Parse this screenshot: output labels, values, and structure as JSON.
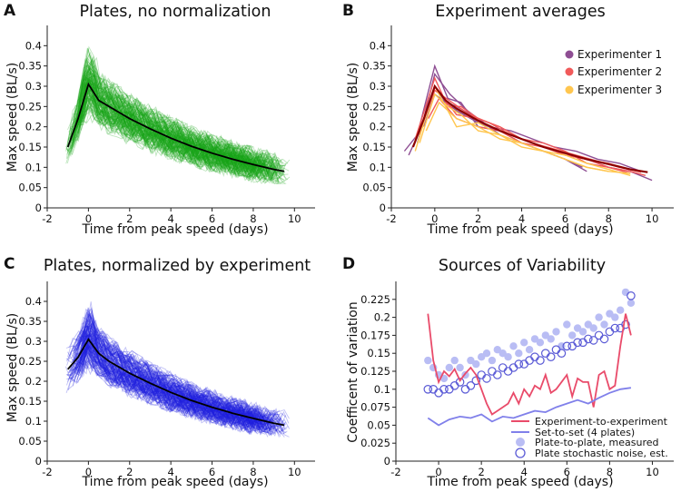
{
  "panels": {
    "A": {
      "letter": "A",
      "chart_data": {
        "type": "line",
        "title": "Plates, no normalization",
        "xlabel": "Time from peak speed (days)",
        "ylabel": "Max speed (BL/s)",
        "xlim": [
          -2,
          11
        ],
        "ylim": [
          0,
          0.45
        ],
        "xticks": [
          "-2",
          "0",
          "2",
          "4",
          "6",
          "8",
          "10"
        ],
        "yticks": [
          "0",
          "0.05",
          "0.1",
          "0.15",
          "0.2",
          "0.25",
          "0.3",
          "0.35",
          "0.4"
        ],
        "trace_color": "#1aa51a",
        "mean_color": "#000000",
        "trace_count": 150,
        "spread": 0.028,
        "mean": {
          "x": [
            -1,
            -0.5,
            0,
            0.5,
            1,
            2,
            3,
            4,
            5,
            6,
            7,
            8,
            9,
            9.5
          ],
          "y": [
            0.15,
            0.22,
            0.305,
            0.265,
            0.25,
            0.22,
            0.195,
            0.172,
            0.152,
            0.135,
            0.12,
            0.107,
            0.095,
            0.09
          ]
        }
      }
    },
    "B": {
      "letter": "B",
      "chart_data": {
        "type": "line",
        "title": "Experiment averages",
        "xlabel": "Time from peak speed (days)",
        "ylabel": "Max speed (BL/s)",
        "xlim": [
          -2,
          11
        ],
        "ylim": [
          0,
          0.45
        ],
        "xticks": [
          "-2",
          "0",
          "2",
          "4",
          "6",
          "8",
          "10"
        ],
        "yticks": [
          "0",
          "0.05",
          "0.1",
          "0.15",
          "0.2",
          "0.25",
          "0.3",
          "0.35",
          "0.4"
        ],
        "mean_color": "#8b0000",
        "mean": {
          "x": [
            -1,
            -0.5,
            0,
            0.5,
            1,
            2,
            3,
            4,
            5,
            6,
            7,
            8,
            9,
            9.8
          ],
          "y": [
            0.15,
            0.22,
            0.3,
            0.265,
            0.245,
            0.215,
            0.19,
            0.17,
            0.15,
            0.135,
            0.12,
            0.108,
            0.095,
            0.088
          ]
        },
        "series": [
          {
            "name": "Experimenter 1",
            "color": "#8e4e93",
            "lines": [
              {
                "x": [
                  -1.4,
                  -0.8,
                  0,
                  0.6,
                  1.2,
                  2,
                  3,
                  4,
                  5,
                  6,
                  6.8
                ],
                "y": [
                  0.14,
                  0.18,
                  0.35,
                  0.27,
                  0.26,
                  0.2,
                  0.19,
                  0.16,
                  0.14,
                  0.12,
                  0.1
                ]
              },
              {
                "x": [
                  -1.2,
                  -0.6,
                  0,
                  0.7,
                  1.5,
                  2.5,
                  3.5,
                  4.5,
                  5.5,
                  6.5,
                  7.5,
                  8.5,
                  9.5
                ],
                "y": [
                  0.13,
                  0.2,
                  0.33,
                  0.28,
                  0.24,
                  0.2,
                  0.19,
                  0.17,
                  0.15,
                  0.14,
                  0.12,
                  0.11,
                  0.09
                ]
              },
              {
                "x": [
                  -0.8,
                  0,
                  0.5,
                  1,
                  2,
                  3,
                  4,
                  5,
                  6,
                  7
                ],
                "y": [
                  0.16,
                  0.3,
                  0.26,
                  0.25,
                  0.22,
                  0.18,
                  0.16,
                  0.14,
                  0.12,
                  0.09
                ]
              },
              {
                "x": [
                  -0.5,
                  0,
                  1,
                  2,
                  3,
                  4,
                  5,
                  6,
                  7,
                  8,
                  9,
                  10
                ],
                "y": [
                  0.2,
                  0.28,
                  0.24,
                  0.21,
                  0.19,
                  0.17,
                  0.15,
                  0.135,
                  0.12,
                  0.1,
                  0.09,
                  0.068
                ]
              }
            ]
          },
          {
            "name": "Experimenter 2",
            "color": "#f15a5a",
            "lines": [
              {
                "x": [
                  -0.9,
                  0,
                  0.6,
                  1.2,
                  2,
                  3,
                  4,
                  5,
                  6,
                  7,
                  8,
                  9
                ],
                "y": [
                  0.17,
                  0.32,
                  0.25,
                  0.25,
                  0.22,
                  0.2,
                  0.17,
                  0.15,
                  0.13,
                  0.12,
                  0.11,
                  0.095
                ]
              },
              {
                "x": [
                  -0.6,
                  0,
                  1,
                  2,
                  3,
                  4,
                  5,
                  6,
                  7,
                  8,
                  9,
                  9.7
                ],
                "y": [
                  0.2,
                  0.3,
                  0.23,
                  0.22,
                  0.2,
                  0.17,
                  0.16,
                  0.14,
                  0.11,
                  0.1,
                  0.09,
                  0.08
                ]
              },
              {
                "x": [
                  -0.3,
                  0.2,
                  1,
                  2,
                  3,
                  4,
                  5,
                  6,
                  7,
                  8,
                  9
                ],
                "y": [
                  0.22,
                  0.27,
                  0.22,
                  0.2,
                  0.19,
                  0.16,
                  0.15,
                  0.13,
                  0.12,
                  0.1,
                  0.085
                ]
              },
              {
                "x": [
                  -0.7,
                  0,
                  0.8,
                  1.6,
                  2.5,
                  3.5,
                  4.5,
                  5.5,
                  6.5,
                  7.5,
                  8.5,
                  9.5
                ],
                "y": [
                  0.18,
                  0.29,
                  0.26,
                  0.23,
                  0.21,
                  0.18,
                  0.16,
                  0.145,
                  0.13,
                  0.115,
                  0.1,
                  0.088
                ]
              }
            ]
          },
          {
            "name": "Experimenter 3",
            "color": "#ffc64f",
            "lines": [
              {
                "x": [
                  -0.7,
                  0,
                  0.6,
                  1.2,
                  2,
                  3,
                  4,
                  5,
                  6,
                  7,
                  8,
                  9
                ],
                "y": [
                  0.16,
                  0.28,
                  0.25,
                  0.23,
                  0.19,
                  0.18,
                  0.16,
                  0.14,
                  0.12,
                  0.1,
                  0.09,
                  0.085
                ]
              },
              {
                "x": [
                  -0.4,
                  0.2,
                  1,
                  2,
                  3,
                  4,
                  5,
                  6,
                  7,
                  8,
                  9
                ],
                "y": [
                  0.19,
                  0.26,
                  0.22,
                  0.2,
                  0.17,
                  0.16,
                  0.14,
                  0.13,
                  0.11,
                  0.095,
                  0.08
                ]
              },
              {
                "x": [
                  -0.9,
                  0,
                  1,
                  2,
                  3,
                  4,
                  5,
                  6,
                  7,
                  8
                ],
                "y": [
                  0.14,
                  0.3,
                  0.2,
                  0.21,
                  0.18,
                  0.15,
                  0.14,
                  0.12,
                  0.1,
                  0.09
                ]
              }
            ]
          }
        ]
      }
    },
    "C": {
      "letter": "C",
      "chart_data": {
        "type": "line",
        "title": "Plates, normalized by experiment",
        "xlabel": "Time from peak speed (days)",
        "ylabel": "Max speed (BL/s)",
        "xlim": [
          -2,
          11
        ],
        "ylim": [
          0,
          0.45
        ],
        "xticks": [
          "-2",
          "0",
          "2",
          "4",
          "6",
          "8",
          "10"
        ],
        "yticks": [
          "0",
          "0.05",
          "0.1",
          "0.15",
          "0.2",
          "0.25",
          "0.3",
          "0.35",
          "0.4"
        ],
        "trace_color": "#2020e0",
        "mean_color": "#000000",
        "trace_count": 150,
        "spread": 0.024,
        "mean": {
          "x": [
            -1,
            -0.5,
            0,
            0.5,
            1,
            2,
            3,
            4,
            5,
            6,
            7,
            8,
            9,
            9.5
          ],
          "y": [
            0.23,
            0.26,
            0.305,
            0.27,
            0.25,
            0.22,
            0.195,
            0.172,
            0.152,
            0.135,
            0.12,
            0.107,
            0.095,
            0.09
          ]
        }
      }
    },
    "D": {
      "letter": "D",
      "chart_data": {
        "type": "line",
        "title": "Sources of Variability",
        "xlabel": "Time from peak speed (days)",
        "ylabel": "Coefficent of variation",
        "xlim": [
          -2,
          11
        ],
        "ylim": [
          0,
          0.25
        ],
        "xticks": [
          "-2",
          "0",
          "2",
          "4",
          "6",
          "8",
          "10"
        ],
        "yticks": [
          "0",
          "0.025",
          "0.05",
          "0.075",
          "0.1",
          "0.125",
          "0.15",
          "0.175",
          "0.2",
          "0.225"
        ],
        "series": [
          {
            "name": "Experiment-to-experiment",
            "style": "line",
            "color": "#e94b6a",
            "x": [
              -0.5,
              -0.25,
              0,
              0.25,
              0.5,
              0.75,
              1,
              1.25,
              1.5,
              1.75,
              2,
              2.25,
              2.5,
              2.75,
              3,
              3.25,
              3.5,
              3.75,
              4,
              4.25,
              4.5,
              4.75,
              5,
              5.25,
              5.5,
              5.75,
              6,
              6.25,
              6.5,
              6.75,
              7,
              7.25,
              7.5,
              7.75,
              8,
              8.25,
              8.5,
              8.75,
              9
            ],
            "y": [
              0.205,
              0.14,
              0.11,
              0.125,
              0.118,
              0.128,
              0.112,
              0.122,
              0.13,
              0.12,
              0.1,
              0.08,
              0.065,
              0.07,
              0.075,
              0.08,
              0.095,
              0.08,
              0.1,
              0.09,
              0.105,
              0.1,
              0.12,
              0.095,
              0.1,
              0.11,
              0.12,
              0.09,
              0.115,
              0.11,
              0.11,
              0.075,
              0.12,
              0.125,
              0.1,
              0.105,
              0.16,
              0.205,
              0.175
            ]
          },
          {
            "name": "Set-to-set (4 plates)",
            "style": "line",
            "color": "#8080ea",
            "x": [
              -0.5,
              0,
              0.5,
              1,
              1.5,
              2,
              2.5,
              3,
              3.5,
              4,
              4.5,
              5,
              5.5,
              6,
              6.5,
              7,
              7.5,
              8,
              8.5,
              9
            ],
            "y": [
              0.06,
              0.05,
              0.058,
              0.062,
              0.06,
              0.065,
              0.055,
              0.062,
              0.06,
              0.065,
              0.07,
              0.068,
              0.075,
              0.08,
              0.085,
              0.08,
              0.088,
              0.095,
              0.1,
              0.102
            ]
          },
          {
            "name": "Plate-to-plate, measured",
            "style": "filled-circle",
            "color": "#b9bdf4",
            "x": [
              -0.5,
              -0.25,
              0,
              0.25,
              0.5,
              0.75,
              1,
              1.25,
              1.5,
              1.75,
              2,
              2.25,
              2.5,
              2.75,
              3,
              3.25,
              3.5,
              3.75,
              4,
              4.25,
              4.5,
              4.75,
              5,
              5.25,
              5.5,
              5.75,
              6,
              6.25,
              6.5,
              6.75,
              7,
              7.25,
              7.5,
              7.75,
              8,
              8.25,
              8.5,
              8.75,
              9
            ],
            "y": [
              0.14,
              0.13,
              0.12,
              0.115,
              0.13,
              0.14,
              0.13,
              0.12,
              0.14,
              0.135,
              0.145,
              0.15,
              0.14,
              0.155,
              0.15,
              0.145,
              0.16,
              0.15,
              0.165,
              0.155,
              0.17,
              0.165,
              0.175,
              0.17,
              0.18,
              0.16,
              0.19,
              0.175,
              0.185,
              0.18,
              0.19,
              0.185,
              0.2,
              0.19,
              0.205,
              0.2,
              0.21,
              0.235,
              0.22
            ]
          },
          {
            "name": "Plate stochastic noise, est.",
            "style": "open-circle",
            "color": "#5a5ad6",
            "x": [
              -0.5,
              -0.25,
              0,
              0.25,
              0.5,
              0.75,
              1,
              1.25,
              1.5,
              1.75,
              2,
              2.25,
              2.5,
              2.75,
              3,
              3.25,
              3.5,
              3.75,
              4,
              4.25,
              4.5,
              4.75,
              5,
              5.25,
              5.5,
              5.75,
              6,
              6.25,
              6.5,
              6.75,
              7,
              7.25,
              7.5,
              7.75,
              8,
              8.25,
              8.5,
              8.75,
              9
            ],
            "y": [
              0.1,
              0.1,
              0.095,
              0.1,
              0.1,
              0.105,
              0.11,
              0.1,
              0.105,
              0.112,
              0.12,
              0.115,
              0.125,
              0.12,
              0.13,
              0.125,
              0.13,
              0.135,
              0.135,
              0.14,
              0.145,
              0.14,
              0.15,
              0.145,
              0.155,
              0.15,
              0.16,
              0.16,
              0.165,
              0.165,
              0.17,
              0.168,
              0.175,
              0.17,
              0.18,
              0.185,
              0.185,
              0.19,
              0.23
            ]
          }
        ]
      }
    }
  }
}
